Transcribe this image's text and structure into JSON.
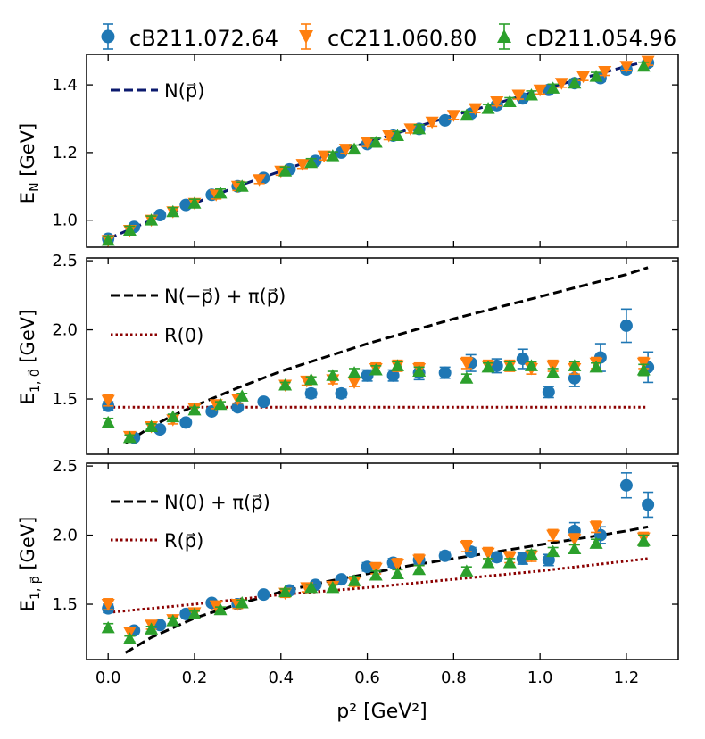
{
  "legend": [
    {
      "name": "cB211.072.64",
      "marker": "circle",
      "color": "#1f77b4"
    },
    {
      "name": "cC211.060.80",
      "marker": "triangle-down",
      "color": "#ff7f0e"
    },
    {
      "name": "cD211.054.96",
      "marker": "triangle-up",
      "color": "#2ca02c"
    }
  ],
  "xlabel": "p² [GeV²]",
  "chart_data": [
    {
      "type": "scatter",
      "ylabel": "E_N [GeV]",
      "xlim": [
        -0.05,
        1.32
      ],
      "ylim": [
        0.92,
        1.49
      ],
      "xticks": [
        0.0,
        0.2,
        0.4,
        0.6,
        0.8,
        1.0,
        1.2
      ],
      "yticks": [
        1.0,
        1.2,
        1.4
      ],
      "ytick_labels": [
        "1.0",
        "1.2",
        "1.4"
      ],
      "series": [
        {
          "name": "cB211.072.64",
          "x": [
            0.0,
            0.06,
            0.12,
            0.18,
            0.24,
            0.3,
            0.36,
            0.42,
            0.48,
            0.54,
            0.6,
            0.66,
            0.72,
            0.78,
            0.84,
            0.9,
            0.96,
            1.02,
            1.08,
            1.14,
            1.2,
            1.25
          ],
          "y": [
            0.945,
            0.98,
            1.015,
            1.045,
            1.075,
            1.1,
            1.125,
            1.15,
            1.175,
            1.2,
            1.225,
            1.25,
            1.27,
            1.295,
            1.315,
            1.34,
            1.36,
            1.385,
            1.405,
            1.42,
            1.445,
            1.465
          ],
          "err": [
            0.01,
            0.008,
            0.008,
            0.008,
            0.008,
            0.008,
            0.008,
            0.008,
            0.008,
            0.008,
            0.008,
            0.008,
            0.008,
            0.008,
            0.008,
            0.008,
            0.008,
            0.008,
            0.008,
            0.01,
            0.01,
            0.01
          ]
        },
        {
          "name": "cC211.060.80",
          "x": [
            0.0,
            0.05,
            0.1,
            0.15,
            0.2,
            0.25,
            0.3,
            0.35,
            0.4,
            0.45,
            0.5,
            0.55,
            0.6,
            0.65,
            0.7,
            0.75,
            0.8,
            0.85,
            0.9,
            0.95,
            1.0,
            1.05,
            1.1,
            1.15,
            1.2,
            1.25
          ],
          "y": [
            0.94,
            0.97,
            1.0,
            1.025,
            1.05,
            1.075,
            1.1,
            1.12,
            1.145,
            1.165,
            1.19,
            1.21,
            1.23,
            1.25,
            1.27,
            1.29,
            1.31,
            1.33,
            1.35,
            1.37,
            1.385,
            1.405,
            1.425,
            1.44,
            1.455,
            1.47
          ],
          "err": [
            0.012,
            0.012,
            0.012,
            0.012,
            0.012,
            0.012,
            0.012,
            0.012,
            0.012,
            0.012,
            0.012,
            0.012,
            0.012,
            0.012,
            0.012,
            0.012,
            0.012,
            0.012,
            0.012,
            0.012,
            0.012,
            0.012,
            0.012,
            0.012,
            0.012,
            0.012
          ]
        },
        {
          "name": "cD211.054.96",
          "x": [
            0.0,
            0.05,
            0.1,
            0.15,
            0.2,
            0.26,
            0.31,
            0.41,
            0.47,
            0.52,
            0.57,
            0.62,
            0.67,
            0.72,
            0.83,
            0.88,
            0.93,
            0.98,
            1.03,
            1.08,
            1.13,
            1.24
          ],
          "y": [
            0.94,
            0.97,
            1.0,
            1.025,
            1.05,
            1.08,
            1.1,
            1.145,
            1.17,
            1.19,
            1.21,
            1.23,
            1.25,
            1.27,
            1.31,
            1.33,
            1.35,
            1.37,
            1.39,
            1.405,
            1.425,
            1.455
          ],
          "err": [
            0.012,
            0.012,
            0.012,
            0.012,
            0.012,
            0.012,
            0.012,
            0.012,
            0.012,
            0.012,
            0.012,
            0.012,
            0.012,
            0.012,
            0.012,
            0.012,
            0.012,
            0.012,
            0.012,
            0.012,
            0.012,
            0.012
          ]
        }
      ],
      "curves": [
        {
          "label": "N(p⃗)",
          "style": "dashed",
          "color": "#0b1a6e",
          "x": [
            0.0,
            0.1,
            0.2,
            0.3,
            0.4,
            0.5,
            0.6,
            0.7,
            0.8,
            0.9,
            1.0,
            1.1,
            1.2,
            1.25
          ],
          "y": [
            0.945,
            1.0,
            1.05,
            1.1,
            1.145,
            1.19,
            1.23,
            1.27,
            1.31,
            1.345,
            1.385,
            1.42,
            1.455,
            1.47
          ]
        }
      ],
      "legend_position": "upper-left"
    },
    {
      "type": "scatter",
      "ylabel": "E_{1,0⃗} [GeV]",
      "xlim": [
        -0.05,
        1.32
      ],
      "ylim": [
        1.1,
        2.52
      ],
      "xticks": [
        0.0,
        0.2,
        0.4,
        0.6,
        0.8,
        1.0,
        1.2
      ],
      "yticks": [
        1.5,
        2.0,
        2.5
      ],
      "ytick_labels": [
        "1.5",
        "2.0",
        "2.5"
      ],
      "series": [
        {
          "name": "cB211.072.64",
          "x": [
            0.0,
            0.06,
            0.12,
            0.18,
            0.24,
            0.3,
            0.36,
            0.47,
            0.54,
            0.6,
            0.66,
            0.72,
            0.78,
            0.84,
            0.9,
            0.96,
            1.02,
            1.08,
            1.14,
            1.2,
            1.25
          ],
          "y": [
            1.45,
            1.22,
            1.28,
            1.33,
            1.41,
            1.44,
            1.48,
            1.54,
            1.54,
            1.67,
            1.67,
            1.69,
            1.69,
            1.76,
            1.74,
            1.79,
            1.55,
            1.65,
            1.8,
            2.03,
            1.73
          ],
          "err": [
            0.03,
            0.02,
            0.02,
            0.02,
            0.02,
            0.02,
            0.02,
            0.03,
            0.03,
            0.04,
            0.04,
            0.05,
            0.04,
            0.06,
            0.05,
            0.07,
            0.04,
            0.06,
            0.1,
            0.12,
            0.11
          ]
        },
        {
          "name": "cC211.060.80",
          "x": [
            0.0,
            0.05,
            0.1,
            0.15,
            0.2,
            0.25,
            0.3,
            0.41,
            0.46,
            0.52,
            0.57,
            0.62,
            0.67,
            0.72,
            0.83,
            0.88,
            0.93,
            0.98,
            1.03,
            1.08,
            1.13,
            1.24
          ],
          "y": [
            1.49,
            1.23,
            1.3,
            1.35,
            1.43,
            1.46,
            1.5,
            1.6,
            1.63,
            1.64,
            1.62,
            1.72,
            1.74,
            1.72,
            1.76,
            1.74,
            1.74,
            1.72,
            1.74,
            1.72,
            1.76,
            1.76
          ],
          "err": [
            0.04,
            0.03,
            0.03,
            0.03,
            0.03,
            0.03,
            0.03,
            0.03,
            0.03,
            0.03,
            0.03,
            0.04,
            0.04,
            0.04,
            0.04,
            0.04,
            0.04,
            0.04,
            0.04,
            0.04,
            0.04,
            0.04
          ]
        },
        {
          "name": "cD211.054.96",
          "x": [
            0.0,
            0.05,
            0.1,
            0.15,
            0.2,
            0.26,
            0.31,
            0.41,
            0.47,
            0.52,
            0.57,
            0.62,
            0.67,
            0.72,
            0.83,
            0.88,
            0.93,
            0.98,
            1.03,
            1.08,
            1.13,
            1.24
          ],
          "y": [
            1.33,
            1.22,
            1.3,
            1.37,
            1.42,
            1.46,
            1.52,
            1.6,
            1.64,
            1.67,
            1.69,
            1.71,
            1.74,
            1.7,
            1.65,
            1.73,
            1.74,
            1.74,
            1.69,
            1.74,
            1.73,
            1.71
          ],
          "err": [
            0.03,
            0.02,
            0.02,
            0.02,
            0.02,
            0.02,
            0.02,
            0.02,
            0.02,
            0.03,
            0.03,
            0.03,
            0.03,
            0.03,
            0.03,
            0.03,
            0.03,
            0.03,
            0.03,
            0.03,
            0.03,
            0.04
          ]
        }
      ],
      "curves": [
        {
          "label": "N(−p⃗) + π(p⃗)",
          "style": "dashed",
          "color": "#000000",
          "x": [
            0.04,
            0.1,
            0.15,
            0.2,
            0.3,
            0.4,
            0.5,
            0.6,
            0.7,
            0.8,
            0.9,
            1.0,
            1.1,
            1.2,
            1.25
          ],
          "y": [
            1.18,
            1.3,
            1.38,
            1.45,
            1.58,
            1.7,
            1.8,
            1.9,
            1.99,
            2.08,
            2.16,
            2.24,
            2.32,
            2.4,
            2.45
          ]
        },
        {
          "label": "R(0)",
          "style": "dotted",
          "color": "#8b0000",
          "x": [
            0.0,
            1.25
          ],
          "y": [
            1.44,
            1.44
          ]
        }
      ],
      "legend_position": "upper-left"
    },
    {
      "type": "scatter",
      "ylabel": "E_{1,p⃗} [GeV]",
      "xlim": [
        -0.05,
        1.32
      ],
      "ylim": [
        1.1,
        2.52
      ],
      "xticks": [
        0.0,
        0.2,
        0.4,
        0.6,
        0.8,
        1.0,
        1.2
      ],
      "xtick_labels": [
        "0.0",
        "0.2",
        "0.4",
        "0.6",
        "0.8",
        "1.0",
        "1.2"
      ],
      "yticks": [
        1.5,
        2.0,
        2.5
      ],
      "ytick_labels": [
        "1.5",
        "2.0",
        "2.5"
      ],
      "series": [
        {
          "name": "cB211.072.64",
          "x": [
            0.0,
            0.06,
            0.12,
            0.18,
            0.24,
            0.3,
            0.36,
            0.42,
            0.48,
            0.54,
            0.6,
            0.66,
            0.72,
            0.78,
            0.84,
            0.9,
            0.96,
            1.02,
            1.08,
            1.14,
            1.2,
            1.25
          ],
          "y": [
            1.47,
            1.31,
            1.35,
            1.43,
            1.51,
            1.5,
            1.57,
            1.6,
            1.64,
            1.68,
            1.77,
            1.8,
            1.82,
            1.85,
            1.88,
            1.84,
            1.83,
            1.82,
            2.03,
            2.0,
            2.36,
            2.22
          ],
          "err": [
            0.03,
            0.02,
            0.02,
            0.02,
            0.02,
            0.02,
            0.02,
            0.02,
            0.02,
            0.02,
            0.03,
            0.03,
            0.03,
            0.03,
            0.03,
            0.03,
            0.04,
            0.04,
            0.06,
            0.06,
            0.09,
            0.09
          ]
        },
        {
          "name": "cC211.060.80",
          "x": [
            0.0,
            0.05,
            0.1,
            0.15,
            0.2,
            0.25,
            0.3,
            0.41,
            0.46,
            0.52,
            0.57,
            0.62,
            0.67,
            0.72,
            0.83,
            0.88,
            0.93,
            0.98,
            1.03,
            1.08,
            1.13,
            1.24
          ],
          "y": [
            1.5,
            1.3,
            1.35,
            1.39,
            1.44,
            1.49,
            1.5,
            1.58,
            1.62,
            1.63,
            1.66,
            1.76,
            1.79,
            1.82,
            1.92,
            1.87,
            1.84,
            1.85,
            2.0,
            1.97,
            2.06,
            1.98
          ],
          "err": [
            0.04,
            0.03,
            0.03,
            0.03,
            0.03,
            0.03,
            0.03,
            0.03,
            0.03,
            0.03,
            0.03,
            0.04,
            0.04,
            0.04,
            0.04,
            0.04,
            0.04,
            0.04,
            0.04,
            0.04,
            0.04,
            0.04
          ]
        },
        {
          "name": "cD211.054.96",
          "x": [
            0.0,
            0.05,
            0.1,
            0.15,
            0.2,
            0.26,
            0.31,
            0.41,
            0.47,
            0.52,
            0.57,
            0.62,
            0.67,
            0.72,
            0.83,
            0.88,
            0.93,
            0.98,
            1.03,
            1.08,
            1.13,
            1.24
          ],
          "y": [
            1.33,
            1.25,
            1.32,
            1.38,
            1.43,
            1.46,
            1.51,
            1.59,
            1.62,
            1.62,
            1.67,
            1.71,
            1.72,
            1.75,
            1.74,
            1.8,
            1.8,
            1.86,
            1.88,
            1.9,
            1.94,
            1.96
          ],
          "err": [
            0.03,
            0.02,
            0.02,
            0.02,
            0.02,
            0.02,
            0.02,
            0.02,
            0.02,
            0.02,
            0.03,
            0.03,
            0.03,
            0.03,
            0.03,
            0.03,
            0.03,
            0.03,
            0.03,
            0.03,
            0.03,
            0.04
          ]
        }
      ],
      "curves": [
        {
          "label": "N(0) + π(p⃗)",
          "style": "dashed",
          "color": "#000000",
          "x": [
            0.04,
            0.1,
            0.15,
            0.2,
            0.3,
            0.4,
            0.5,
            0.6,
            0.7,
            0.8,
            0.9,
            1.0,
            1.1,
            1.2,
            1.25
          ],
          "y": [
            1.15,
            1.26,
            1.33,
            1.4,
            1.5,
            1.59,
            1.66,
            1.72,
            1.78,
            1.83,
            1.88,
            1.93,
            1.98,
            2.03,
            2.06
          ]
        },
        {
          "label": "R(p⃗)",
          "style": "dotted",
          "color": "#8b0000",
          "x": [
            0.0,
            0.2,
            0.4,
            0.6,
            0.8,
            1.0,
            1.25
          ],
          "y": [
            1.44,
            1.5,
            1.57,
            1.62,
            1.68,
            1.74,
            1.83
          ]
        }
      ],
      "legend_position": "upper-left"
    }
  ]
}
